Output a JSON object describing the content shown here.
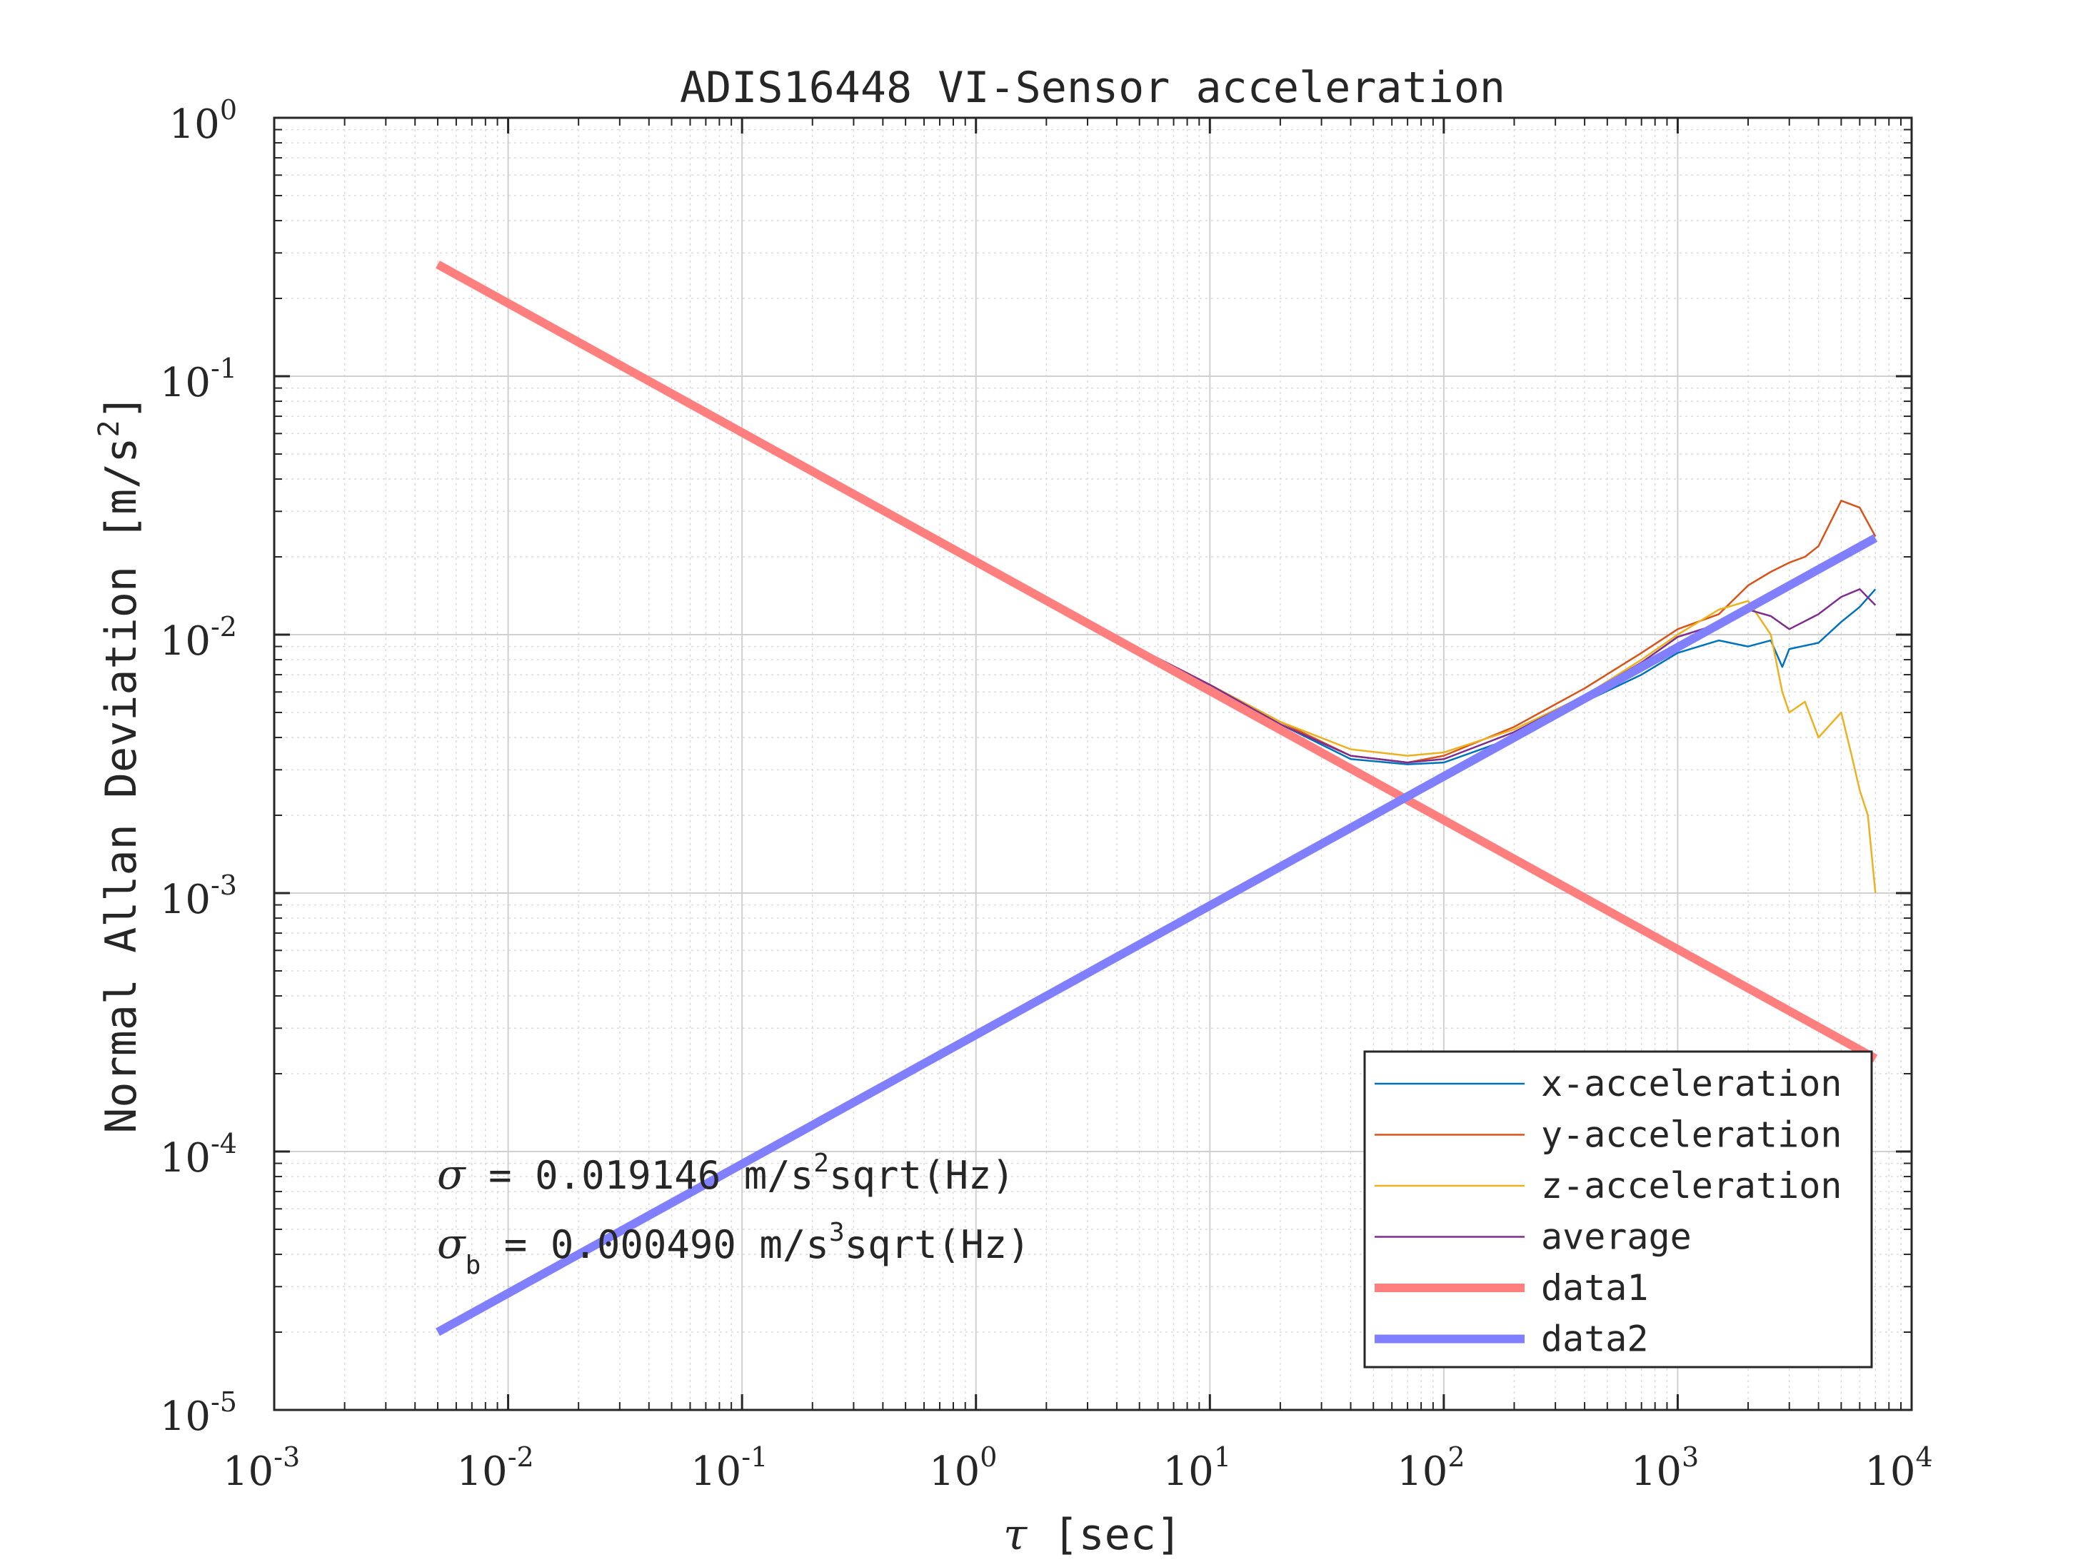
{
  "chart_data": {
    "type": "line",
    "title": "ADIS16448 VI-Sensor acceleration",
    "xlabel_symbol": "τ",
    "xlabel": "[sec]",
    "ylabel_main": "Normal Allan Deviation [m/s",
    "ylabel_sup": "2",
    "ylabel_close": "]",
    "xscale": "log",
    "yscale": "log",
    "xlim": [
      0.001,
      10000
    ],
    "ylim": [
      1e-05,
      1
    ],
    "grid": true,
    "minor_grid": true,
    "legend_position": "bottom-right",
    "x_ticks": [
      {
        "base": "10",
        "exp": "-3",
        "value": 0.001
      },
      {
        "base": "10",
        "exp": "-2",
        "value": 0.01
      },
      {
        "base": "10",
        "exp": "-1",
        "value": 0.1
      },
      {
        "base": "10",
        "exp": "0",
        "value": 1
      },
      {
        "base": "10",
        "exp": "1",
        "value": 10
      },
      {
        "base": "10",
        "exp": "2",
        "value": 100
      },
      {
        "base": "10",
        "exp": "3",
        "value": 1000
      },
      {
        "base": "10",
        "exp": "4",
        "value": 10000
      }
    ],
    "y_ticks": [
      {
        "base": "10",
        "exp": "-5",
        "value": 1e-05
      },
      {
        "base": "10",
        "exp": "-4",
        "value": 0.0001
      },
      {
        "base": "10",
        "exp": "-3",
        "value": 0.001
      },
      {
        "base": "10",
        "exp": "-2",
        "value": 0.01
      },
      {
        "base": "10",
        "exp": "-1",
        "value": 0.1
      },
      {
        "base": "10",
        "exp": "0",
        "value": 1
      }
    ],
    "series": [
      {
        "name": "x-acceleration",
        "color": "#0072BD",
        "width": 2.5,
        "x": [
          0.005,
          0.01,
          0.1,
          1,
          5,
          10,
          20,
          40,
          70,
          100,
          200,
          400,
          700,
          1000,
          1500,
          2000,
          2500,
          2800,
          3000,
          4000,
          5000,
          6000,
          7000
        ],
        "y": [
          0.2708,
          0.1915,
          0.0605,
          0.0192,
          0.0088,
          0.0064,
          0.0045,
          0.0033,
          0.00315,
          0.0032,
          0.004,
          0.0055,
          0.007,
          0.0085,
          0.0095,
          0.009,
          0.0095,
          0.0075,
          0.0088,
          0.0093,
          0.0112,
          0.0128,
          0.015
        ]
      },
      {
        "name": "y-acceleration",
        "color": "#D95319",
        "width": 2.5,
        "x": [
          0.005,
          0.01,
          0.1,
          1,
          5,
          10,
          20,
          40,
          70,
          100,
          200,
          400,
          700,
          1000,
          1500,
          2000,
          2500,
          3000,
          3500,
          4000,
          5000,
          6000,
          7000
        ],
        "y": [
          0.2708,
          0.1915,
          0.0605,
          0.0192,
          0.0088,
          0.0064,
          0.0046,
          0.0034,
          0.0032,
          0.0034,
          0.0044,
          0.0062,
          0.0085,
          0.0105,
          0.012,
          0.0155,
          0.0175,
          0.019,
          0.02,
          0.022,
          0.033,
          0.031,
          0.024
        ]
      },
      {
        "name": "z-acceleration",
        "color": "#EDB120",
        "width": 2.5,
        "x": [
          0.005,
          0.01,
          0.1,
          1,
          5,
          10,
          20,
          40,
          70,
          100,
          200,
          400,
          700,
          1000,
          1500,
          2000,
          2500,
          2800,
          3000,
          3500,
          4000,
          4500,
          5000,
          5500,
          6000,
          6500,
          7000
        ],
        "y": [
          0.2708,
          0.1915,
          0.0605,
          0.0192,
          0.0088,
          0.0064,
          0.0046,
          0.0036,
          0.0034,
          0.0035,
          0.0043,
          0.0058,
          0.008,
          0.01,
          0.0125,
          0.0135,
          0.01,
          0.006,
          0.005,
          0.0055,
          0.004,
          0.0045,
          0.005,
          0.0035,
          0.0025,
          0.002,
          0.001
        ]
      },
      {
        "name": "average",
        "color": "#7E2F8E",
        "width": 2.5,
        "x": [
          0.005,
          0.01,
          0.1,
          1,
          5,
          10,
          20,
          40,
          70,
          100,
          200,
          400,
          700,
          1000,
          1500,
          2000,
          2500,
          3000,
          4000,
          5000,
          6000,
          7000
        ],
        "y": [
          0.2708,
          0.1915,
          0.0605,
          0.0192,
          0.0088,
          0.0064,
          0.0045,
          0.0034,
          0.0032,
          0.0033,
          0.0042,
          0.0058,
          0.0078,
          0.0098,
          0.011,
          0.0125,
          0.0118,
          0.0105,
          0.012,
          0.014,
          0.015,
          0.013
        ]
      },
      {
        "name": "data1",
        "color": "#FF7F7F",
        "width": 12,
        "x": [
          0.005,
          7000
        ],
        "y": [
          0.2708,
          0.000229
        ]
      },
      {
        "name": "data2",
        "color": "#7F7FFF",
        "width": 12,
        "x": [
          0.005,
          7000
        ],
        "y": [
          2e-05,
          0.02366
        ]
      }
    ],
    "annotations": [
      {
        "symbol": "σ",
        "sub": "",
        "text_pre": " = 0.019146 m/s",
        "sup": "2",
        "text_post": "sqrt(Hz)"
      },
      {
        "symbol": "σ",
        "sub": "b",
        "text_pre": " = 0.000490 m/s",
        "sup": "3",
        "text_post": "sqrt(Hz)"
      }
    ]
  }
}
